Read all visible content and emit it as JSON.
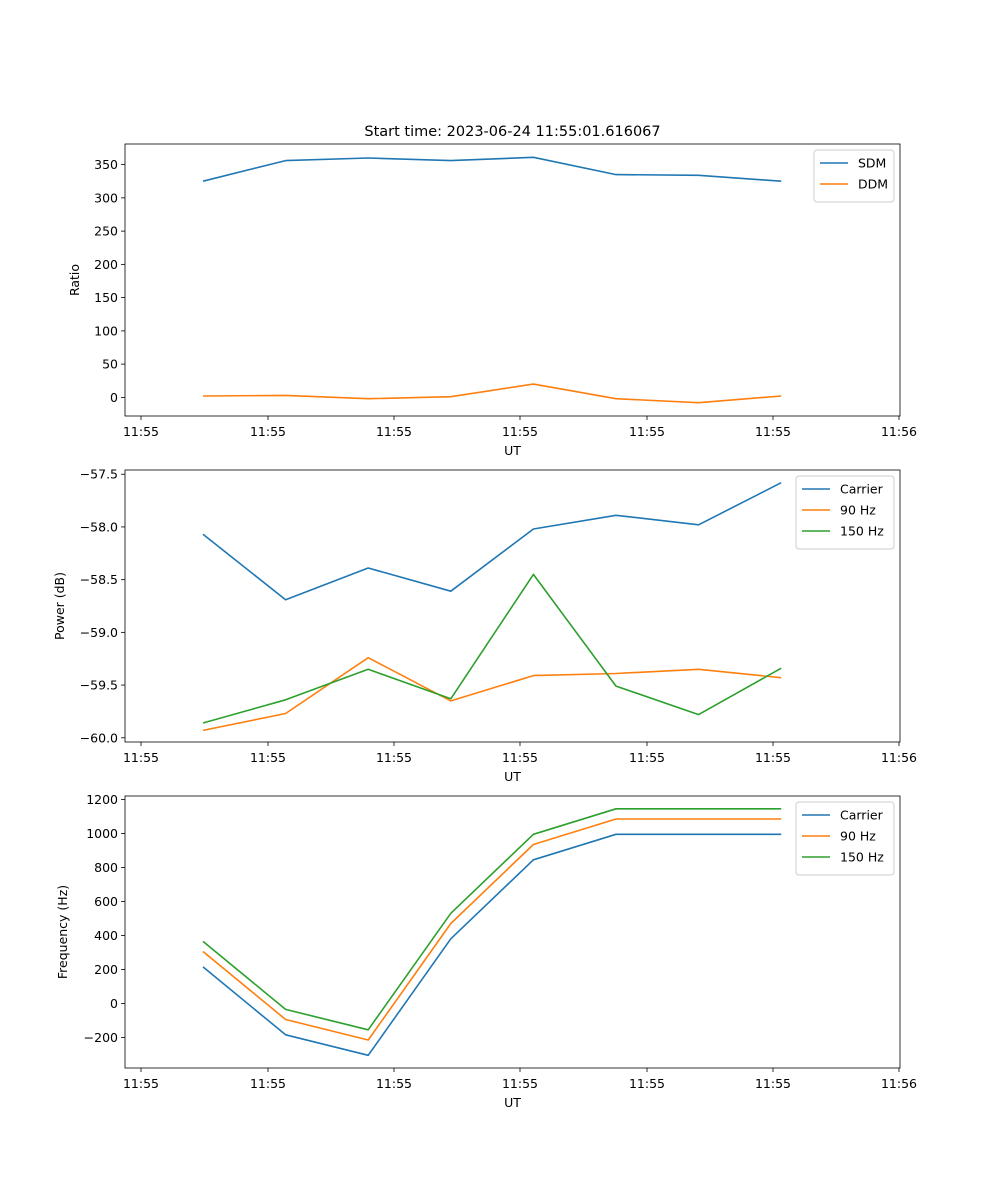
{
  "figure_title": "Start time: 2023-06-24 11:55:01.616067",
  "colors": {
    "c0": "#1f77b4",
    "c1": "#ff7f0e",
    "c2": "#2ca02c"
  },
  "chart_data": [
    {
      "type": "line",
      "xlabel": "UT",
      "ylabel": "Ratio",
      "x_tick_labels": [
        "11:55",
        "11:55",
        "11:55",
        "11:55",
        "11:55",
        "11:55",
        "11:55"
      ],
      "x_tick_labels_extra": "11:56",
      "x_points": 8,
      "y_ticks": [
        0,
        50,
        100,
        150,
        200,
        250,
        300,
        350
      ],
      "y_tick_labels": [
        "0",
        "50",
        "100",
        "150",
        "200",
        "250",
        "300",
        "350"
      ],
      "ylim": [
        -28,
        381
      ],
      "legend": "upper right",
      "series": [
        {
          "name": "SDM",
          "color": "#1f77b4",
          "values": [
            325,
            356,
            360,
            356,
            361,
            335,
            334,
            325
          ]
        },
        {
          "name": "DDM",
          "color": "#ff7f0e",
          "values": [
            2,
            3,
            -2,
            1,
            20,
            -2,
            -8,
            2
          ]
        }
      ]
    },
    {
      "type": "line",
      "xlabel": "UT",
      "ylabel": "Power (dB)",
      "x_tick_labels": [
        "11:55",
        "11:55",
        "11:55",
        "11:55",
        "11:55",
        "11:55",
        "11:55"
      ],
      "x_tick_labels_extra": "11:56",
      "x_points": 8,
      "y_ticks": [
        -60.0,
        -59.5,
        -59.0,
        -58.5,
        -58.0,
        -57.5
      ],
      "y_tick_labels": [
        "−60.0",
        "−59.5",
        "−59.0",
        "−58.5",
        "−58.0",
        "−57.5"
      ],
      "ylim": [
        -60.04,
        -57.46
      ],
      "legend": "upper right",
      "series": [
        {
          "name": "Carrier",
          "color": "#1f77b4",
          "values": [
            -58.07,
            -58.69,
            -58.39,
            -58.61,
            -58.02,
            -57.89,
            -57.98,
            -57.58
          ]
        },
        {
          "name": "90 Hz",
          "color": "#ff7f0e",
          "values": [
            -59.93,
            -59.77,
            -59.24,
            -59.65,
            -59.41,
            -59.39,
            -59.35,
            -59.43
          ]
        },
        {
          "name": "150 Hz",
          "color": "#2ca02c",
          "values": [
            -59.86,
            -59.64,
            -59.35,
            -59.63,
            -58.45,
            -59.51,
            -59.78,
            -59.34
          ]
        }
      ]
    },
    {
      "type": "line",
      "xlabel": "UT",
      "ylabel": "Frequency (Hz)",
      "x_tick_labels": [
        "11:55",
        "11:55",
        "11:55",
        "11:55",
        "11:55",
        "11:55",
        "11:55"
      ],
      "x_tick_labels_extra": "11:56",
      "x_points": 8,
      "y_ticks": [
        -200,
        0,
        200,
        400,
        600,
        800,
        1000,
        1200
      ],
      "y_tick_labels": [
        "−200",
        "0",
        "200",
        "400",
        "600",
        "800",
        "1000",
        "1200"
      ],
      "ylim": [
        -380,
        1220
      ],
      "legend": "upper right",
      "series": [
        {
          "name": "Carrier",
          "color": "#1f77b4",
          "values": [
            215,
            -185,
            -305,
            380,
            845,
            995,
            995,
            995
          ]
        },
        {
          "name": "90 Hz",
          "color": "#ff7f0e",
          "values": [
            305,
            -95,
            -215,
            470,
            935,
            1085,
            1085,
            1085
          ]
        },
        {
          "name": "150 Hz",
          "color": "#2ca02c",
          "values": [
            365,
            -35,
            -155,
            530,
            995,
            1145,
            1145,
            1145
          ]
        }
      ]
    }
  ]
}
